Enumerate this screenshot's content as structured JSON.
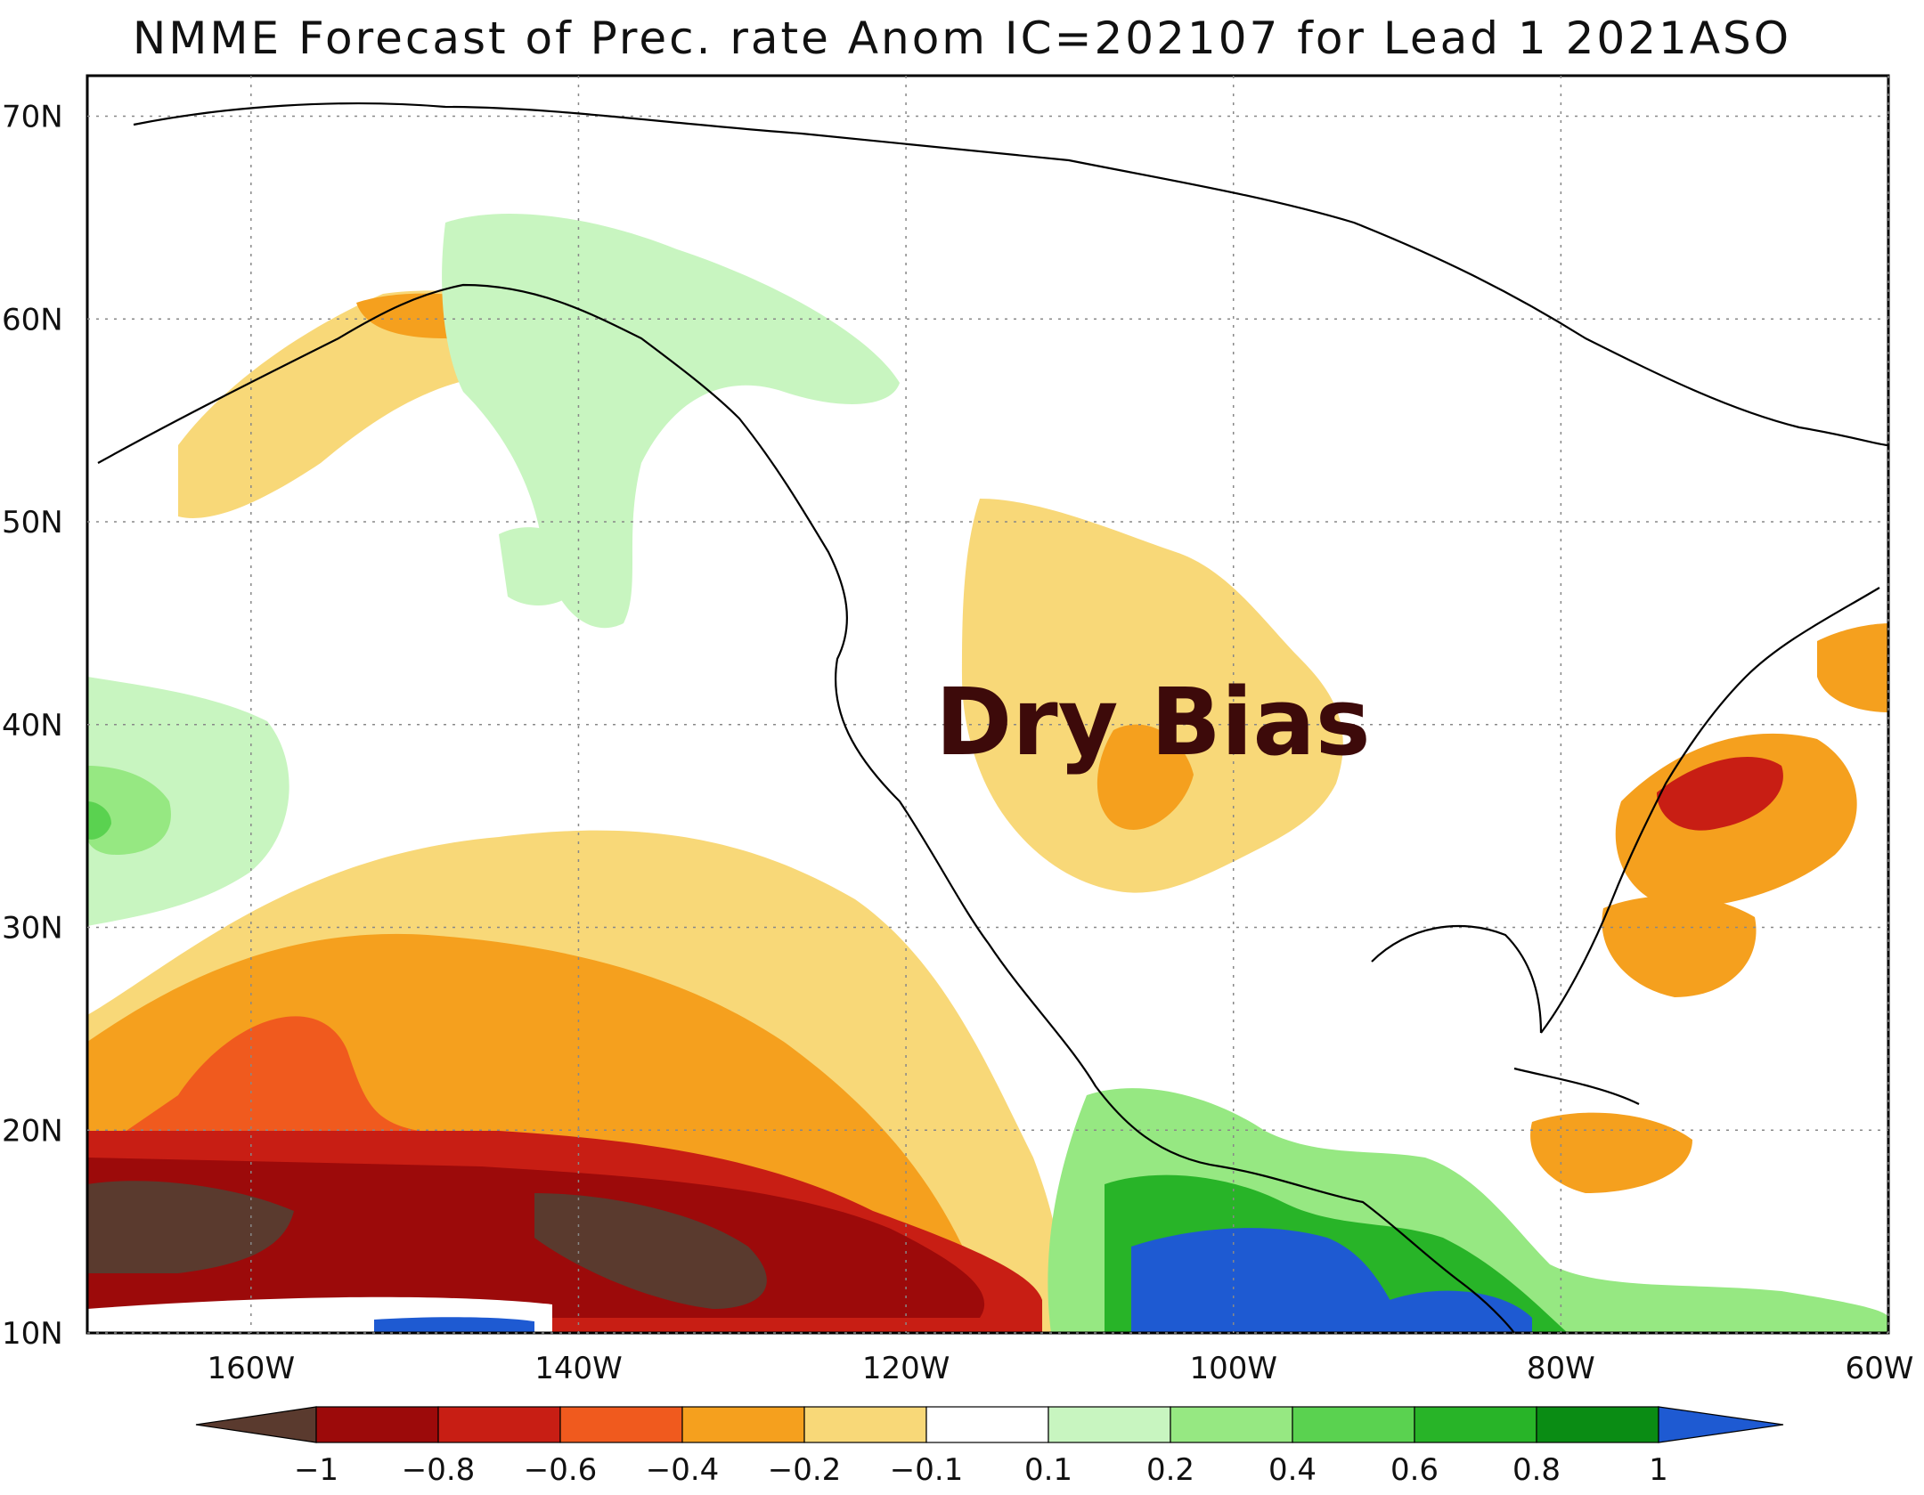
{
  "title": "NMME Forecast of Prec. rate Anom IC=202107 for Lead 1 2021ASO",
  "annotation": "Dry Bias",
  "axes": {
    "lat_labels": [
      "70N",
      "60N",
      "50N",
      "40N",
      "30N",
      "20N",
      "10N"
    ],
    "lon_labels": [
      "160W",
      "140W",
      "120W",
      "100W",
      "80W",
      "60W"
    ],
    "lat_range": [
      10,
      72
    ],
    "lon_range": [
      -170,
      -60
    ],
    "grid": "dotted"
  },
  "colorbar": {
    "labels": [
      "−1",
      "−0.8",
      "−0.6",
      "−0.4",
      "−0.2",
      "−0.1",
      "0.1",
      "0.2",
      "0.4",
      "0.6",
      "0.8",
      "1"
    ],
    "colors": [
      "#5a3a2e",
      "#9c0a0a",
      "#c81e14",
      "#f05a1e",
      "#f5a01e",
      "#f8d878",
      "#ffffff",
      "#c8f5c0",
      "#96e882",
      "#5ad250",
      "#28b428",
      "#0a8c14",
      "#1e5ad2"
    ]
  }
}
